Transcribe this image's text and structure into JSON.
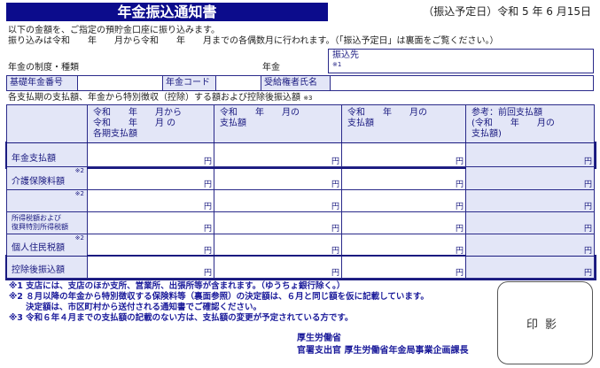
{
  "title": "年金振込通知書",
  "scheduled_date": "（振込予定日）令和 5 年 6 月15日",
  "intro_line1": "以下の金額を、ご指定の預貯金口座に振り込みます。",
  "intro_line2": "振り込みは令和　　年　　月から令和　　年　　月までの各偶数月に行われます。（「振込予定日」は裏面をご覧ください。）",
  "transfer_to": {
    "label": "振込先",
    "note": "※1"
  },
  "pension_type_label": "年金の制度・種類",
  "pension_suffix": "年金",
  "id_row": {
    "basic_number": "基礎年金番号",
    "pension_code": "年金コード",
    "recipient_name": "受給権者氏名"
  },
  "table_caption": "各支払期の支払額、年金から特別徴収（控除）する額および控除後振込額",
  "table_caption_note": "※3",
  "columns": [
    [
      "令和　　年　　月から",
      "令和　　年　　月 の",
      "各期支払額"
    ],
    [
      "令和　　年　　月の",
      "支払額"
    ],
    [
      "令和　　年　　月の",
      "支払額"
    ],
    [
      "参考：前回支払額",
      "(令和　　年　　月の",
      "支払額)"
    ]
  ],
  "rows": [
    {
      "label": "年金支払額",
      "note": ""
    },
    {
      "label": "介護保険料額",
      "note": "※2"
    },
    {
      "label": "",
      "note": "※2"
    },
    {
      "label": "所得税額および\n復興特別所得税額",
      "note": ""
    },
    {
      "label": "個人住民税額",
      "note": "※2"
    },
    {
      "label": "控除後振込額",
      "note": ""
    }
  ],
  "yen": "円",
  "notes": [
    "※1 支店には、支店のほか支所、営業所、出張所等が含まれます。（ゆうちょ銀行除く。）",
    "※2 ８月以降の年金から特別徴収する保険料等（裏面参照）の決定額は、６月と同じ額を仮に記載しています。",
    "　　決定額は、市区町村から送付される通知書でご確認ください。",
    "※3 令和６年４月までの支払額の記載のない方は、支払額の変更が予定されている方です。"
  ],
  "stamp": "印影",
  "issuer": [
    "厚生労働省",
    "官署支出官 厚生労働省年金局事業企画課長"
  ],
  "colors": {
    "navy": "#0c0c8c",
    "cell_fill": "#e3e6f7"
  }
}
